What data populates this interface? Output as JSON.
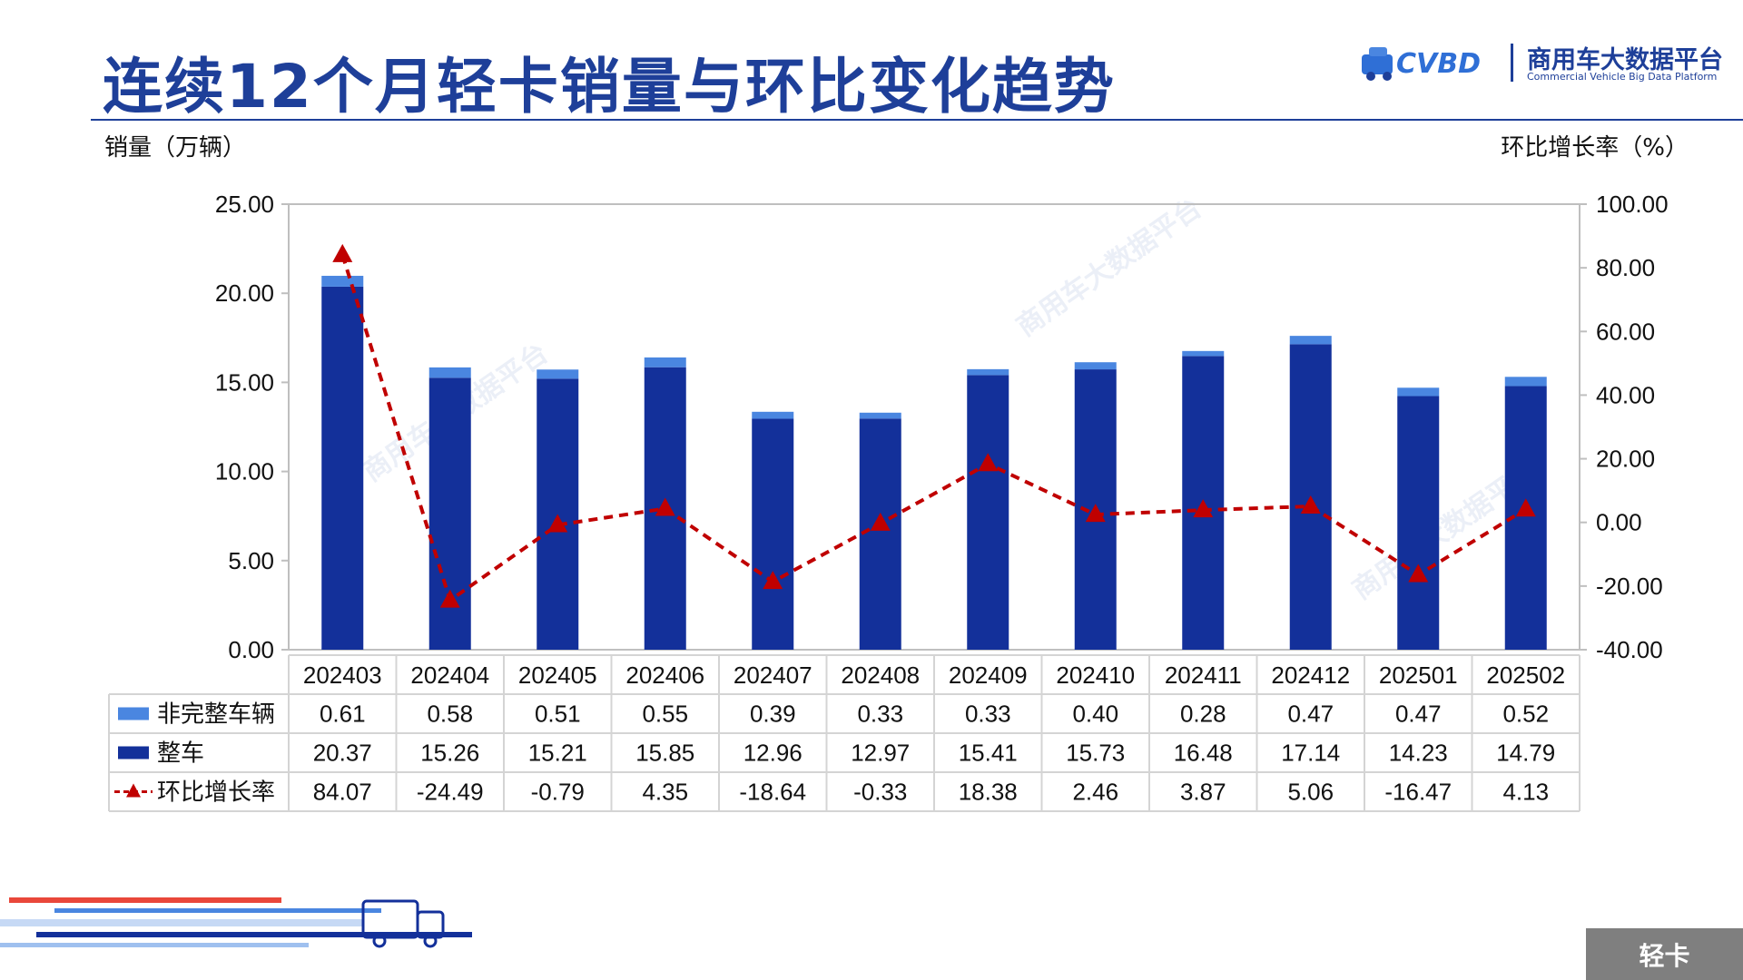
{
  "header": {
    "title": "连续12个月轻卡销量与环比变化趋势",
    "logo_cn": "商用车大数据平台",
    "logo_en": "Commercial Vehicle Big Data Platform",
    "logo_mark": "CVBD"
  },
  "corner_tag": "轻卡",
  "colors": {
    "title": "#1e3f99",
    "bar_main": "#13309a",
    "bar_incomplete": "#4a86e0",
    "line_growth": "#c00000"
  },
  "chart_data": {
    "type": "bar",
    "left_axis_label": "销量（万辆）",
    "right_axis_label": "环比增长率（%）",
    "categories": [
      "202403",
      "202404",
      "202405",
      "202406",
      "202407",
      "202408",
      "202409",
      "202410",
      "202411",
      "202412",
      "202501",
      "202502"
    ],
    "left_ylim": [
      0,
      25
    ],
    "left_ticks": [
      "0.00",
      "5.00",
      "10.00",
      "15.00",
      "20.00",
      "25.00"
    ],
    "right_ylim": [
      -40,
      100
    ],
    "right_ticks": [
      "-40.00",
      "-20.00",
      "0.00",
      "20.00",
      "40.00",
      "60.00",
      "80.00",
      "100.00"
    ],
    "series": [
      {
        "name": "非完整车辆",
        "kind": "stacked-bar",
        "values": [
          0.61,
          0.58,
          0.51,
          0.55,
          0.39,
          0.33,
          0.33,
          0.4,
          0.28,
          0.47,
          0.47,
          0.52
        ],
        "labels": [
          "0.61",
          "0.58",
          "0.51",
          "0.55",
          "0.39",
          "0.33",
          "0.33",
          "0.40",
          "0.28",
          "0.47",
          "0.47",
          "0.52"
        ]
      },
      {
        "name": "整车",
        "kind": "stacked-bar",
        "values": [
          20.37,
          15.26,
          15.21,
          15.85,
          12.96,
          12.97,
          15.41,
          15.73,
          16.48,
          17.14,
          14.23,
          14.79
        ],
        "labels": [
          "20.37",
          "15.26",
          "15.21",
          "15.85",
          "12.96",
          "12.97",
          "15.41",
          "15.73",
          "16.48",
          "17.14",
          "14.23",
          "14.79"
        ]
      },
      {
        "name": "环比增长率",
        "kind": "line",
        "axis": "right",
        "values": [
          84.07,
          -24.49,
          -0.79,
          4.35,
          -18.64,
          -0.33,
          18.38,
          2.46,
          3.87,
          5.06,
          -16.47,
          4.13
        ],
        "labels": [
          "84.07",
          "-24.49",
          "-0.79",
          "4.35",
          "-18.64",
          "-0.33",
          "18.38",
          "2.46",
          "3.87",
          "5.06",
          "-16.47",
          "4.13"
        ]
      }
    ],
    "grid": false,
    "legend": "table-left"
  }
}
